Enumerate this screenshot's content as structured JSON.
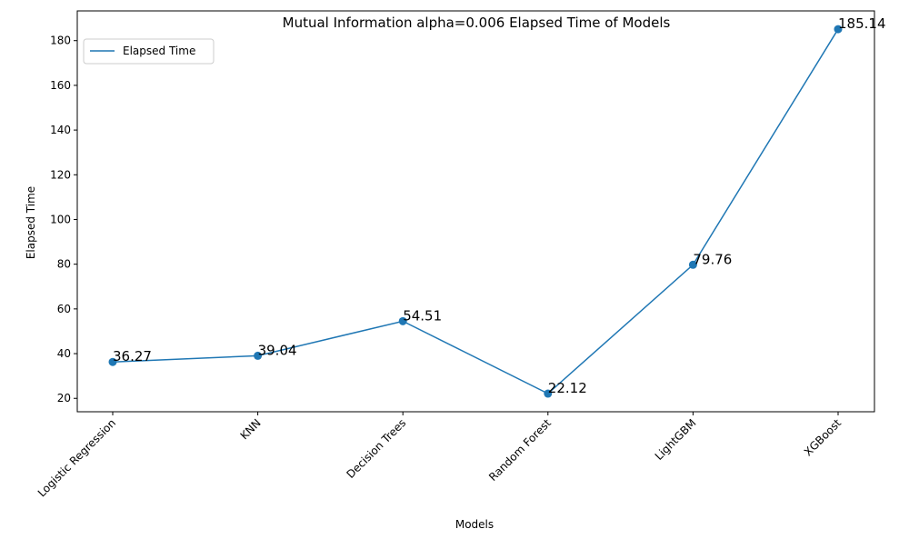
{
  "chart_data": {
    "type": "line",
    "title": "Mutual Information alpha=0.006 Elapsed Time of Models",
    "xlabel": "Models",
    "ylabel": "Elapsed Time",
    "categories": [
      "Logistic Regression",
      "KNN",
      "Decision Trees",
      "Random Forest",
      "LightGBM",
      "XGBoost"
    ],
    "series": [
      {
        "name": "Elapsed Time",
        "values": [
          36.27,
          39.04,
          54.51,
          22.12,
          79.76,
          185.14
        ],
        "labels": [
          "36.27",
          "39.04",
          "54.51",
          "22.12",
          "79.76",
          "185.14"
        ],
        "color": "#1f77b4"
      }
    ],
    "ylim": [
      14.0,
      193.3
    ],
    "yticks": [
      20,
      40,
      60,
      80,
      100,
      120,
      140,
      160,
      180
    ],
    "grid": false,
    "legend_position": "upper-left",
    "markers": "circle"
  }
}
